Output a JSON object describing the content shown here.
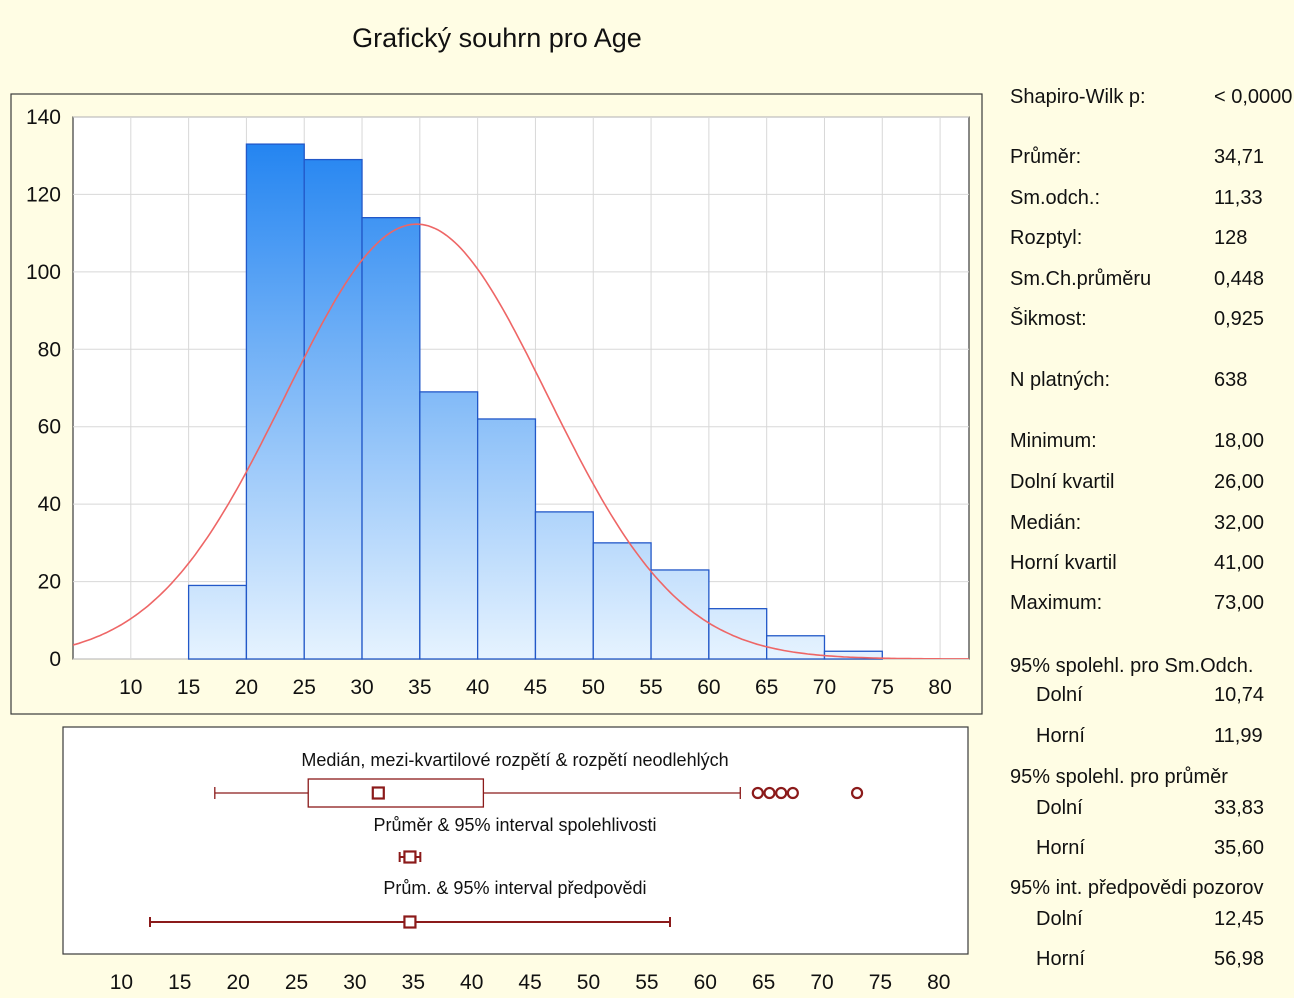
{
  "window": {
    "title": "Grafický souhrn pro Age"
  },
  "chart_data": [
    {
      "type": "bar",
      "subtype": "histogram",
      "bins": [
        {
          "from": 15,
          "to": 20,
          "count": 19
        },
        {
          "from": 20,
          "to": 25,
          "count": 133
        },
        {
          "from": 25,
          "to": 30,
          "count": 129
        },
        {
          "from": 30,
          "to": 35,
          "count": 114
        },
        {
          "from": 35,
          "to": 40,
          "count": 69
        },
        {
          "from": 40,
          "to": 45,
          "count": 62
        },
        {
          "from": 45,
          "to": 50,
          "count": 38
        },
        {
          "from": 50,
          "to": 55,
          "count": 30
        },
        {
          "from": 55,
          "to": 60,
          "count": 23
        },
        {
          "from": 60,
          "to": 65,
          "count": 13
        },
        {
          "from": 65,
          "to": 70,
          "count": 6
        },
        {
          "from": 70,
          "to": 75,
          "count": 2
        }
      ],
      "normal_curve": {
        "mean": 34.71,
        "sd": 11.33,
        "n": 638,
        "bin_width": 5,
        "color": "#ee6666"
      },
      "xlim": [
        5,
        82.5
      ],
      "ylim": [
        0,
        140
      ],
      "x_ticks": [
        "10",
        "15",
        "20",
        "25",
        "30",
        "35",
        "40",
        "45",
        "50",
        "55",
        "60",
        "65",
        "70",
        "75",
        "80"
      ],
      "y_ticks": [
        "0",
        "20",
        "40",
        "60",
        "80",
        "100",
        "120",
        "140"
      ],
      "grid": true,
      "bar_color_top": "#1a7ff0",
      "bar_color_bottom": "#e6f3ff",
      "bar_edge_color": "#2258c8"
    },
    {
      "type": "boxplot",
      "xlim": [
        5,
        82.5
      ],
      "x_ticks": [
        "10",
        "15",
        "20",
        "25",
        "30",
        "35",
        "40",
        "45",
        "50",
        "55",
        "60",
        "65",
        "70",
        "75",
        "80"
      ],
      "color": "#8b1a1a",
      "rows": [
        {
          "label": "Medián, mezi-kvartilové rozpětí & rozpětí neodlehlých",
          "kind": "box",
          "whisker_low": 18,
          "q1": 26,
          "median": 32,
          "q3": 41,
          "whisker_high": 63,
          "outliers": [
            64.5,
            65.5,
            66.5,
            67.5,
            73
          ]
        },
        {
          "label": "Průměr & 95% interval spolehlivosti",
          "kind": "interval",
          "low": 33.83,
          "center": 34.71,
          "high": 35.6
        },
        {
          "label": "Prům. & 95% interval předpovědi",
          "kind": "interval",
          "low": 12.45,
          "center": 34.71,
          "high": 56.98
        }
      ]
    }
  ],
  "stats": {
    "shapiro": {
      "label": "Shapiro-Wilk p:",
      "value": "< 0,0000"
    },
    "mean": {
      "label": "Průměr:",
      "value": "34,71"
    },
    "sd": {
      "label": "Sm.odch.:",
      "value": "11,33"
    },
    "variance": {
      "label": "Rozptyl:",
      "value": "128"
    },
    "se_mean": {
      "label": "Sm.Ch.průměru",
      "value": "0,448"
    },
    "skewness": {
      "label": "Šikmost:",
      "value": "0,925"
    },
    "n_valid": {
      "label": "N platných:",
      "value": "638"
    },
    "minimum": {
      "label": "Minimum:",
      "value": "18,00"
    },
    "q1": {
      "label": "Dolní kvartil",
      "value": "26,00"
    },
    "median": {
      "label": "Medián:",
      "value": "32,00"
    },
    "q3": {
      "label": "Horní kvartil",
      "value": "41,00"
    },
    "maximum": {
      "label": "Maximum:",
      "value": "73,00"
    },
    "ci_sd": {
      "header": "95% spolehl. pro Sm.Odch.",
      "lower_label": "Dolní",
      "lower": "10,74",
      "upper_label": "Horní",
      "upper": "11,99"
    },
    "ci_mean": {
      "header": "95% spolehl. pro průměr",
      "lower_label": "Dolní",
      "lower": "33,83",
      "upper_label": "Horní",
      "upper": "35,60"
    },
    "pi": {
      "header": "95% int. předpovědi pozorov",
      "lower_label": "Dolní",
      "lower": "12,45",
      "upper_label": "Horní",
      "upper": "56,98"
    }
  }
}
